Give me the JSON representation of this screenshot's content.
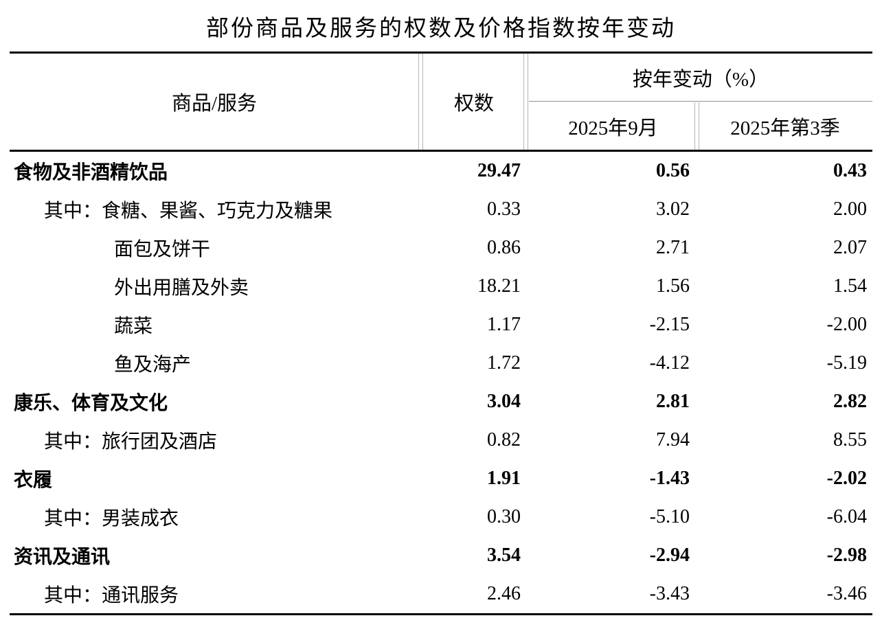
{
  "title": "部份商品及服务的权数及价格指数按年变动",
  "table": {
    "headers": {
      "commodity": "商品/服务",
      "weight": "权数",
      "yoy_group": "按年变动（%）",
      "sub_month": "2025年9月",
      "sub_quarter": "2025年第3季"
    },
    "rows": [
      {
        "label": "食物及非酒精饮品",
        "indent": 0,
        "bold": true,
        "weight": "29.47",
        "month": "0.56",
        "quarter": "0.43"
      },
      {
        "label": "其中：食糖、果酱、巧克力及糖果",
        "indent": 1,
        "bold": false,
        "weight": "0.33",
        "month": "3.02",
        "quarter": "2.00"
      },
      {
        "label": "面包及饼干",
        "indent": 2,
        "bold": false,
        "weight": "0.86",
        "month": "2.71",
        "quarter": "2.07"
      },
      {
        "label": "外出用膳及外卖",
        "indent": 2,
        "bold": false,
        "weight": "18.21",
        "month": "1.56",
        "quarter": "1.54"
      },
      {
        "label": "蔬菜",
        "indent": 2,
        "bold": false,
        "weight": "1.17",
        "month": "-2.15",
        "quarter": "-2.00"
      },
      {
        "label": "鱼及海产",
        "indent": 2,
        "bold": false,
        "weight": "1.72",
        "month": "-4.12",
        "quarter": "-5.19"
      },
      {
        "label": "康乐、体育及文化",
        "indent": 0,
        "bold": true,
        "weight": "3.04",
        "month": "2.81",
        "quarter": "2.82"
      },
      {
        "label": "其中：旅行团及酒店",
        "indent": 1,
        "bold": false,
        "weight": "0.82",
        "month": "7.94",
        "quarter": "8.55"
      },
      {
        "label": "衣履",
        "indent": 0,
        "bold": true,
        "weight": "1.91",
        "month": "-1.43",
        "quarter": "-2.02"
      },
      {
        "label": "其中：男装成衣",
        "indent": 1,
        "bold": false,
        "weight": "0.30",
        "month": "-5.10",
        "quarter": "-6.04"
      },
      {
        "label": "资讯及通讯",
        "indent": 0,
        "bold": true,
        "weight": "3.54",
        "month": "-2.94",
        "quarter": "-2.98"
      },
      {
        "label": "其中：通讯服务",
        "indent": 1,
        "bold": false,
        "weight": "2.46",
        "month": "-3.43",
        "quarter": "-3.46"
      }
    ]
  }
}
